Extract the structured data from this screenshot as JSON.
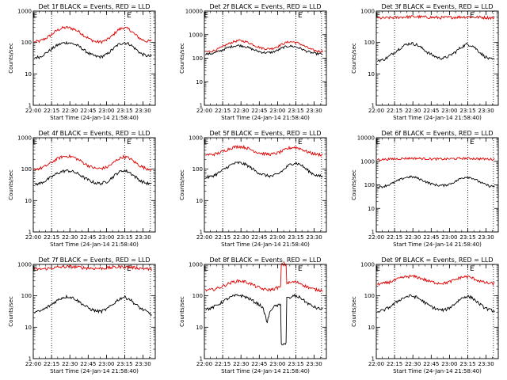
{
  "page": {
    "background": "#ffffff"
  },
  "colors": {
    "events": "#000000",
    "lld": "#e00000",
    "axes": "#000000"
  },
  "chart_data": [
    {
      "type": "line",
      "title": "Det 1f BLACK = Events, RED = LLD",
      "ylabel": "Counts/sec",
      "xlabel": "Start Time (24-Jan-14 21:58:40)",
      "scale": "log",
      "ylim": [
        1,
        1000
      ],
      "xlim": [
        "22:00",
        "23:40"
      ],
      "yticks": [
        "1",
        "10",
        "100",
        "1000"
      ],
      "xticks": [
        "22:00",
        "22:15",
        "22:30",
        "22:45",
        "23:00",
        "23:15",
        "23:30"
      ],
      "vlines": [
        "22:15",
        "23:15",
        "23:36"
      ],
      "markers": [
        {
          "text": "E",
          "x": "21:59"
        },
        {
          "text": "E",
          "x": "23:16"
        }
      ],
      "series": [
        {
          "color": "#e00000",
          "values": [
            105,
            110,
            135,
            175,
            240,
            290,
            300,
            270,
            220,
            160,
            125,
            105,
            105,
            120,
            165,
            250,
            300,
            260,
            180,
            130,
            110,
            110
          ]
        },
        {
          "color": "#000000",
          "values": [
            33,
            35,
            45,
            60,
            80,
            95,
            100,
            90,
            75,
            55,
            42,
            36,
            35,
            42,
            60,
            85,
            100,
            90,
            65,
            45,
            38,
            36
          ]
        }
      ]
    },
    {
      "type": "line",
      "title": "Det 2f BLACK = Events, RED = LLD",
      "ylabel": "Counts/sec",
      "xlabel": "Start Time (24-Jan-14 21:58:40)",
      "scale": "log",
      "ylim": [
        1,
        10000
      ],
      "xlim": [
        "22:00",
        "23:40"
      ],
      "yticks": [
        "1",
        "10",
        "100",
        "1000",
        "10000"
      ],
      "xticks": [
        "22:00",
        "22:15",
        "22:30",
        "22:45",
        "23:00",
        "23:15",
        "23:30"
      ],
      "vlines": [
        "22:15",
        "23:15",
        "23:36"
      ],
      "markers": [
        {
          "text": "E",
          "x": "21:59"
        },
        {
          "text": "E",
          "x": "23:16"
        }
      ],
      "series": [
        {
          "color": "#e00000",
          "values": [
            190,
            195,
            230,
            300,
            400,
            500,
            560,
            520,
            430,
            330,
            270,
            250,
            260,
            320,
            420,
            500,
            480,
            400,
            300,
            230,
            200,
            195
          ]
        },
        {
          "color": "#000000",
          "values": [
            150,
            155,
            180,
            220,
            280,
            330,
            350,
            320,
            260,
            210,
            180,
            170,
            180,
            220,
            290,
            330,
            310,
            260,
            200,
            170,
            155,
            150
          ]
        }
      ]
    },
    {
      "type": "line",
      "title": "Det 3f BLACK = Events, RED = LLD",
      "ylabel": "Counts/sec",
      "xlabel": "Start Time (24-Jan-14 21:58:40)",
      "scale": "log",
      "ylim": [
        1,
        1000
      ],
      "xlim": [
        "22:00",
        "23:40"
      ],
      "yticks": [
        "1",
        "10",
        "100",
        "1000"
      ],
      "xticks": [
        "22:00",
        "22:15",
        "22:30",
        "22:45",
        "23:00",
        "23:15",
        "23:30"
      ],
      "vlines": [
        "22:15",
        "23:15",
        "23:36"
      ],
      "markers": [
        {
          "text": "E",
          "x": "21:59"
        },
        {
          "text": "E",
          "x": "23:16"
        }
      ],
      "series": [
        {
          "color": "#e00000",
          "values": [
            600,
            600,
            610,
            620,
            640,
            650,
            660,
            660,
            650,
            640,
            630,
            620,
            620,
            630,
            640,
            650,
            660,
            650,
            640,
            630,
            620,
            610
          ]
        },
        {
          "color": "#000000",
          "values": [
            27,
            28,
            35,
            48,
            65,
            85,
            95,
            85,
            65,
            48,
            38,
            32,
            32,
            38,
            50,
            70,
            88,
            80,
            55,
            38,
            30,
            28
          ]
        }
      ]
    },
    {
      "type": "line",
      "title": "Det 4f BLACK = Events, RED = LLD",
      "ylabel": "Counts/sec",
      "xlabel": "Start Time (24-Jan-14 21:58:40)",
      "scale": "log",
      "ylim": [
        1,
        1000
      ],
      "xlim": [
        "22:00",
        "23:40"
      ],
      "yticks": [
        "1",
        "10",
        "100",
        "1000"
      ],
      "xticks": [
        "22:00",
        "22:15",
        "22:30",
        "22:45",
        "23:00",
        "23:15",
        "23:30"
      ],
      "vlines": [
        "22:15",
        "23:15",
        "23:36"
      ],
      "markers": [
        {
          "text": "E",
          "x": "21:59"
        },
        {
          "text": "E",
          "x": "23:16"
        }
      ],
      "series": [
        {
          "color": "#e00000",
          "values": [
            100,
            105,
            125,
            160,
            210,
            250,
            260,
            240,
            195,
            150,
            120,
            105,
            105,
            115,
            150,
            210,
            250,
            225,
            165,
            125,
            105,
            100
          ]
        },
        {
          "color": "#000000",
          "values": [
            33,
            35,
            43,
            55,
            72,
            85,
            90,
            82,
            68,
            52,
            42,
            36,
            35,
            40,
            55,
            78,
            92,
            80,
            58,
            42,
            36,
            33
          ]
        }
      ]
    },
    {
      "type": "line",
      "title": "Det 5f BLACK = Events, RED = LLD",
      "ylabel": "Counts/sec",
      "xlabel": "Start Time (24-Jan-14 21:58:40)",
      "scale": "log",
      "ylim": [
        1,
        1000
      ],
      "xlim": [
        "22:00",
        "23:40"
      ],
      "yticks": [
        "1",
        "10",
        "100",
        "1000"
      ],
      "xticks": [
        "22:00",
        "22:15",
        "22:30",
        "22:45",
        "23:00",
        "23:15",
        "23:30"
      ],
      "vlines": [
        "22:15",
        "23:15",
        "23:36"
      ],
      "markers": [
        {
          "text": "E",
          "x": "21:59"
        },
        {
          "text": "E",
          "x": "23:16"
        }
      ],
      "series": [
        {
          "color": "#e00000",
          "values": [
            290,
            290,
            310,
            360,
            430,
            500,
            530,
            500,
            430,
            360,
            320,
            300,
            300,
            330,
            390,
            470,
            500,
            450,
            370,
            320,
            295,
            290
          ]
        },
        {
          "color": "#000000",
          "values": [
            55,
            58,
            70,
            90,
            120,
            150,
            160,
            145,
            115,
            85,
            70,
            62,
            60,
            70,
            95,
            135,
            160,
            140,
            100,
            75,
            62,
            58
          ]
        }
      ]
    },
    {
      "type": "line",
      "title": "Det 6f BLACK = Events, RED = LLD",
      "ylabel": "Counts/sec",
      "xlabel": "Start Time (24-Jan-14 21:58:40)",
      "scale": "log",
      "ylim": [
        1,
        10000
      ],
      "xlim": [
        "22:00",
        "23:40"
      ],
      "yticks": [
        "1",
        "10",
        "100",
        "1000",
        "10000"
      ],
      "xticks": [
        "22:00",
        "22:15",
        "22:30",
        "22:45",
        "23:00",
        "23:15",
        "23:30"
      ],
      "vlines": [
        "22:15",
        "23:15",
        "23:36"
      ],
      "markers": [
        {
          "text": "E",
          "x": "21:59"
        },
        {
          "text": "E",
          "x": "23:16"
        }
      ],
      "series": [
        {
          "color": "#e00000",
          "values": [
            1200,
            1210,
            1230,
            1260,
            1300,
            1330,
            1350,
            1340,
            1310,
            1280,
            1260,
            1250,
            1250,
            1270,
            1300,
            1330,
            1340,
            1320,
            1290,
            1260,
            1240,
            1220
          ]
        },
        {
          "color": "#000000",
          "values": [
            80,
            85,
            100,
            125,
            165,
            205,
            220,
            200,
            160,
            125,
            105,
            95,
            95,
            110,
            140,
            190,
            220,
            195,
            145,
            110,
            90,
            85
          ]
        }
      ]
    },
    {
      "type": "line",
      "title": "Det 7f BLACK = Events, RED = LLD",
      "ylabel": "Counts/sec",
      "xlabel": "Start Time (24-Jan-14 21:58:40)",
      "scale": "log",
      "ylim": [
        1,
        1000
      ],
      "xlim": [
        "22:00",
        "23:40"
      ],
      "yticks": [
        "1",
        "10",
        "100",
        "1000"
      ],
      "xticks": [
        "22:00",
        "22:15",
        "22:30",
        "22:45",
        "23:00",
        "23:15",
        "23:30"
      ],
      "vlines": [
        "22:15",
        "23:15",
        "23:36"
      ],
      "markers": [
        {
          "text": "E",
          "x": "21:59"
        },
        {
          "text": "E",
          "x": "23:16"
        }
      ],
      "series": [
        {
          "color": "#e00000",
          "values": [
            700,
            710,
            730,
            760,
            800,
            830,
            850,
            840,
            810,
            780,
            760,
            750,
            750,
            770,
            800,
            830,
            840,
            820,
            790,
            760,
            730,
            700
          ]
        },
        {
          "color": "#000000",
          "values": [
            30,
            32,
            40,
            52,
            70,
            88,
            95,
            85,
            65,
            48,
            38,
            33,
            32,
            38,
            52,
            75,
            92,
            80,
            55,
            40,
            32,
            25
          ]
        }
      ]
    },
    {
      "type": "line",
      "title": "Det 8f BLACK = Events, RED = LLD",
      "ylabel": "Counts/sec",
      "xlabel": "Start Time (24-Jan-14 21:58:40)",
      "scale": "log",
      "ylim": [
        1,
        1000
      ],
      "xlim": [
        "22:00",
        "23:40"
      ],
      "yticks": [
        "1",
        "10",
        "100",
        "1000"
      ],
      "xticks": [
        "22:00",
        "22:15",
        "22:30",
        "22:45",
        "23:00",
        "23:15",
        "23:30"
      ],
      "vlines": [
        "22:15",
        "23:15",
        "23:36"
      ],
      "markers": [
        {
          "text": "E",
          "x": "21:59"
        },
        {
          "text": "E",
          "x": "23:16"
        }
      ],
      "series": [
        {
          "color": "#e00000",
          "values": [
            150,
            155,
            170,
            200,
            240,
            280,
            300,
            285,
            245,
            200,
            170,
            155,
            160,
            185,
            1000,
            260,
            280,
            250,
            200,
            170,
            155,
            150
          ]
        },
        {
          "color": "#000000",
          "values": [
            38,
            40,
            50,
            63,
            82,
            98,
            105,
            95,
            78,
            60,
            48,
            13,
            43,
            50,
            3,
            85,
            100,
            88,
            62,
            48,
            40,
            38
          ]
        }
      ]
    },
    {
      "type": "line",
      "title": "Det 9f BLACK = Events, RED = LLD",
      "ylabel": "Counts/sec",
      "xlabel": "Start Time (24-Jan-14 21:58:40)",
      "scale": "log",
      "ylim": [
        1,
        1000
      ],
      "xlim": [
        "22:00",
        "23:40"
      ],
      "yticks": [
        "1",
        "10",
        "100",
        "1000"
      ],
      "xticks": [
        "22:00",
        "22:15",
        "22:30",
        "22:45",
        "23:00",
        "23:15",
        "23:30"
      ],
      "vlines": [
        "22:15",
        "23:15",
        "23:36"
      ],
      "markers": [
        {
          "text": "E",
          "x": "21:59"
        },
        {
          "text": "E",
          "x": "23:16"
        }
      ],
      "series": [
        {
          "color": "#e00000",
          "values": [
            240,
            245,
            270,
            310,
            360,
            400,
            420,
            400,
            350,
            300,
            270,
            255,
            255,
            280,
            330,
            390,
            410,
            370,
            310,
            270,
            250,
            245
          ]
        },
        {
          "color": "#000000",
          "values": [
            32,
            34,
            42,
            55,
            75,
            92,
            100,
            90,
            70,
            52,
            42,
            36,
            35,
            42,
            58,
            82,
            98,
            86,
            60,
            44,
            36,
            33
          ]
        }
      ]
    }
  ]
}
